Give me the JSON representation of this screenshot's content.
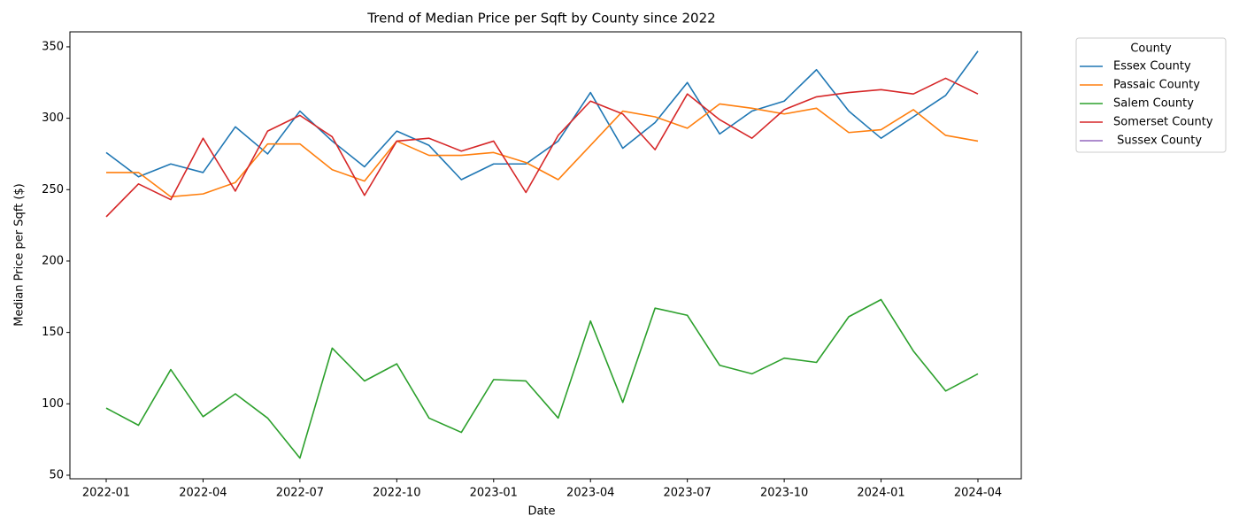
{
  "chart_data": {
    "type": "line",
    "title": "Trend of Median Price per Sqft by County since 2022",
    "x_label": "Date",
    "y_label": "Median Price per Sqft ($)",
    "x": [
      "2022-01",
      "2022-02",
      "2022-03",
      "2022-04",
      "2022-05",
      "2022-06",
      "2022-07",
      "2022-08",
      "2022-09",
      "2022-10",
      "2022-11",
      "2022-12",
      "2023-01",
      "2023-02",
      "2023-03",
      "2023-04",
      "2023-05",
      "2023-06",
      "2023-07",
      "2023-08",
      "2023-09",
      "2023-10",
      "2023-11",
      "2023-12",
      "2024-01",
      "2024-02",
      "2024-03",
      "2024-04"
    ],
    "xticks": [
      "2022-01",
      "2022-04",
      "2022-07",
      "2022-10",
      "2023-01",
      "2023-04",
      "2023-07",
      "2023-10",
      "2024-01",
      "2024-04"
    ],
    "ylim": [
      47.5,
      360.5
    ],
    "yticks": [
      50,
      100,
      150,
      200,
      250,
      300,
      350
    ],
    "legend_title": "County",
    "legend_position": "outside-right",
    "grid": false,
    "series": [
      {
        "name": "Essex County",
        "color": "#1f77b4",
        "values": [
          276,
          259,
          268,
          262,
          294,
          275,
          305,
          284,
          266,
          291,
          281,
          257,
          268,
          268,
          284,
          318,
          279,
          297,
          325,
          289,
          305,
          312,
          334,
          305,
          286,
          301,
          316,
          347
        ]
      },
      {
        "name": "Passaic County",
        "color": "#ff7f0e",
        "values": [
          262,
          262,
          245,
          247,
          255,
          282,
          282,
          264,
          256,
          284,
          274,
          274,
          276,
          269,
          257,
          281,
          305,
          301,
          293,
          310,
          307,
          303,
          307,
          290,
          292,
          306,
          288,
          284
        ]
      },
      {
        "name": "Salem County",
        "color": "#2ca02c",
        "values": [
          97,
          85,
          124,
          91,
          107,
          90,
          62,
          139,
          116,
          128,
          90,
          80,
          117,
          116,
          90,
          158,
          101,
          167,
          162,
          127,
          121,
          132,
          129,
          161,
          173,
          137,
          109,
          121
        ]
      },
      {
        "name": "Somerset County",
        "color": "#d62728",
        "values": [
          231,
          254,
          243,
          286,
          249,
          291,
          302,
          287,
          246,
          284,
          286,
          277,
          284,
          248,
          288,
          312,
          303,
          278,
          317,
          299,
          286,
          306,
          315,
          318,
          320,
          317,
          328,
          317
        ]
      },
      {
        "name": " Sussex County",
        "color": "#9467bd",
        "values": [
          null,
          null,
          null,
          null,
          null,
          null,
          null,
          null,
          null,
          null,
          null,
          null,
          null,
          null,
          null,
          null,
          null,
          null,
          null,
          null,
          null,
          null,
          null,
          null,
          null,
          null,
          null,
          null
        ]
      }
    ]
  }
}
